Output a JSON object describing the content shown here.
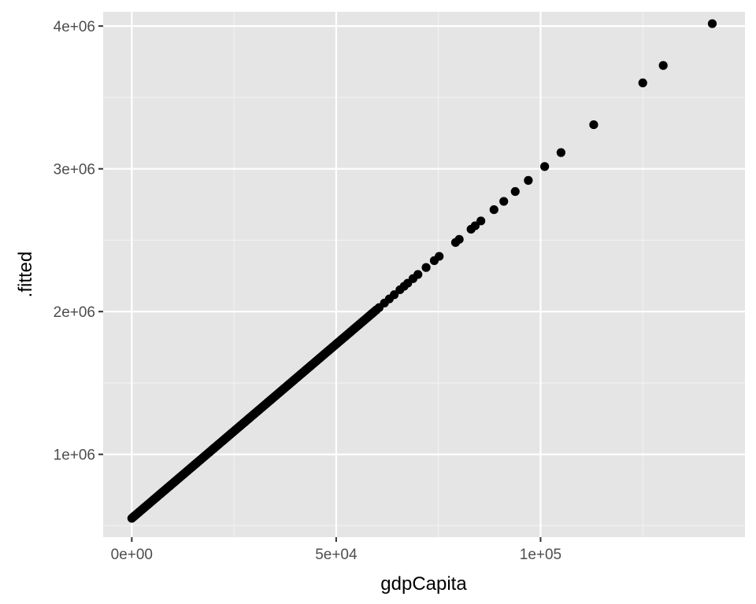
{
  "chart_data": {
    "type": "scatter",
    "xlabel": "gdpCapita",
    "ylabel": ".fitted",
    "xlim": [
      -7000,
      150000
    ],
    "ylim": [
      420000,
      4100000
    ],
    "x_ticks": [
      {
        "value": 0,
        "label": "0e+00"
      },
      {
        "value": 50000,
        "label": "5e+04"
      },
      {
        "value": 100000,
        "label": "1e+05"
      }
    ],
    "y_ticks": [
      {
        "value": 1000000,
        "label": "1e+06"
      },
      {
        "value": 2000000,
        "label": "2e+06"
      },
      {
        "value": 3000000,
        "label": "3e+06"
      },
      {
        "value": 4000000,
        "label": "4e+06"
      }
    ],
    "grid": true,
    "legend": "none",
    "colors": {
      "panel": "#e5e5e5",
      "grid_major": "#ffffff",
      "point": "#000000"
    },
    "fit": {
      "intercept": 552000,
      "slope": 24.4
    },
    "dense_range": [
      0,
      60000
    ],
    "points": [
      {
        "x": 60500,
        "y": 2028000
      },
      {
        "x": 61800,
        "y": 2060000
      },
      {
        "x": 63000,
        "y": 2089000
      },
      {
        "x": 64200,
        "y": 2118000
      },
      {
        "x": 65600,
        "y": 2153000
      },
      {
        "x": 66600,
        "y": 2177000
      },
      {
        "x": 67500,
        "y": 2199000
      },
      {
        "x": 68800,
        "y": 2231000
      },
      {
        "x": 70000,
        "y": 2260000
      },
      {
        "x": 72000,
        "y": 2309000
      },
      {
        "x": 74000,
        "y": 2357000
      },
      {
        "x": 75200,
        "y": 2387000
      },
      {
        "x": 79200,
        "y": 2484000
      },
      {
        "x": 80100,
        "y": 2506000
      },
      {
        "x": 83000,
        "y": 2577000
      },
      {
        "x": 84000,
        "y": 2601000
      },
      {
        "x": 85400,
        "y": 2635000
      },
      {
        "x": 88600,
        "y": 2714000
      },
      {
        "x": 91000,
        "y": 2772000
      },
      {
        "x": 93800,
        "y": 2841000
      },
      {
        "x": 97000,
        "y": 2919000
      },
      {
        "x": 101000,
        "y": 3016000
      },
      {
        "x": 105000,
        "y": 3114000
      },
      {
        "x": 113000,
        "y": 3309000
      },
      {
        "x": 125000,
        "y": 3602000
      },
      {
        "x": 130000,
        "y": 3724000
      },
      {
        "x": 142000,
        "y": 4017000
      }
    ]
  }
}
